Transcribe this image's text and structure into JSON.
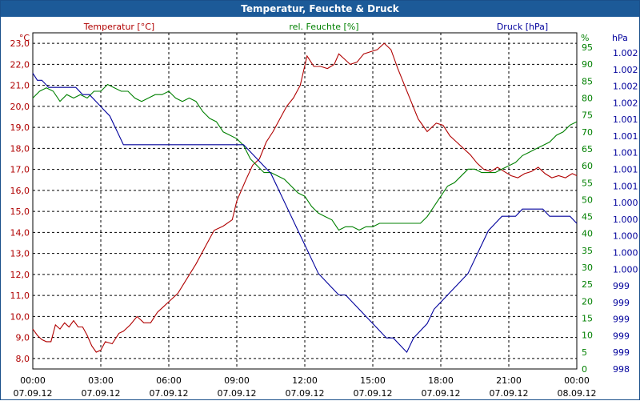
{
  "window": {
    "title": "Temperatur, Feuchte & Druck"
  },
  "colors": {
    "temperature": "#b00000",
    "humidity": "#008000",
    "pressure": "#00009c",
    "grid": "#000000",
    "title_bg": "#1c5a98"
  },
  "chart_data": {
    "type": "line",
    "title": "Temperatur, Feuchte & Druck",
    "grid": true,
    "x_ticks": [
      {
        "time": "00:00",
        "date": "07.09.12"
      },
      {
        "time": "03:00",
        "date": "07.09.12"
      },
      {
        "time": "06:00",
        "date": "07.09.12"
      },
      {
        "time": "09:00",
        "date": "07.09.12"
      },
      {
        "time": "12:00",
        "date": "07.09.12"
      },
      {
        "time": "15:00",
        "date": "07.09.12"
      },
      {
        "time": "18:00",
        "date": "07.09.12"
      },
      {
        "time": "21:00",
        "date": "07.09.12"
      },
      {
        "time": "00:00",
        "date": "08.09.12"
      }
    ],
    "axes": {
      "left": {
        "unit": "°C",
        "min": 7.5,
        "max": 23.5,
        "ticks": [
          "8,0",
          "9,0",
          "10,0",
          "11,0",
          "12,0",
          "13,0",
          "14,0",
          "15,0",
          "16,0",
          "17,0",
          "18,0",
          "19,0",
          "20,0",
          "21,0",
          "22,0",
          "23,0"
        ]
      },
      "right1": {
        "unit": "%",
        "min": 0,
        "max": 95,
        "ticks": [
          "0",
          "5",
          "10",
          "15",
          "20",
          "25",
          "30",
          "35",
          "40",
          "45",
          "50",
          "55",
          "60",
          "65",
          "70",
          "75",
          "80",
          "85",
          "90",
          "95"
        ]
      },
      "right2": {
        "unit": "hPa",
        "ticks": [
          "998",
          "999",
          "999",
          "999",
          "999",
          "999",
          "1.000",
          "1.000",
          "1.000",
          "1.000",
          "1.000",
          "1.001",
          "1.001",
          "1.001",
          "1.001",
          "1.001",
          "1.002",
          "1.002",
          "1.002",
          "1.002"
        ]
      }
    },
    "series": [
      {
        "name": "Temperatur [°C]",
        "color": "#b00000",
        "axis": "left",
        "x": [
          0,
          0.2,
          0.4,
          0.6,
          0.8,
          1.0,
          1.2,
          1.4,
          1.6,
          1.8,
          2.0,
          2.2,
          2.4,
          2.6,
          2.8,
          3.0,
          3.2,
          3.5,
          3.8,
          4.0,
          4.3,
          4.6,
          4.9,
          5.2,
          5.5,
          5.8,
          6.1,
          6.4,
          6.8,
          7.2,
          7.6,
          8.0,
          8.4,
          8.8,
          9.0,
          9.4,
          9.7,
          10.0,
          10.3,
          10.6,
          10.9,
          11.2,
          11.5,
          11.8,
          12.1,
          12.4,
          12.7,
          13.0,
          13.3,
          13.5,
          13.7,
          14.0,
          14.3,
          14.6,
          14.9,
          15.2,
          15.5,
          15.8,
          16.1,
          16.4,
          16.7,
          17.0,
          17.2,
          17.4,
          17.6,
          17.8,
          18.1,
          18.4,
          18.7,
          19.0,
          19.3,
          19.6,
          19.9,
          20.2,
          20.5,
          20.8,
          21.1,
          21.4,
          21.7,
          22.0,
          22.3,
          22.6,
          22.9,
          23.2,
          23.5,
          23.8,
          24.0
        ],
        "values": [
          9.4,
          9.1,
          8.9,
          8.8,
          8.8,
          9.6,
          9.4,
          9.7,
          9.5,
          9.8,
          9.5,
          9.5,
          9.1,
          8.6,
          8.3,
          8.4,
          8.8,
          8.7,
          9.2,
          9.3,
          9.6,
          10.0,
          9.7,
          9.7,
          10.2,
          10.5,
          10.8,
          11.1,
          11.8,
          12.5,
          13.3,
          14.1,
          14.3,
          14.6,
          15.5,
          16.5,
          17.2,
          17.5,
          18.3,
          18.8,
          19.4,
          20.0,
          20.4,
          21.0,
          22.4,
          21.9,
          21.9,
          21.8,
          22.0,
          22.5,
          22.3,
          22.0,
          22.1,
          22.5,
          22.6,
          22.7,
          23.0,
          22.7,
          21.8,
          21.0,
          20.2,
          19.4,
          19.1,
          18.8,
          19.0,
          19.2,
          19.1,
          18.6,
          18.3,
          18.0,
          17.7,
          17.3,
          17.0,
          16.9,
          17.1,
          16.9,
          16.7,
          16.6,
          16.8,
          16.9,
          17.1,
          16.8,
          16.6,
          16.7,
          16.6,
          16.8,
          16.7
        ]
      },
      {
        "name": "rel. Feuchte [%]",
        "color": "#008000",
        "axis": "right1",
        "x": [
          0,
          0.3,
          0.6,
          0.9,
          1.2,
          1.5,
          1.8,
          2.1,
          2.4,
          2.7,
          3.0,
          3.3,
          3.6,
          3.9,
          4.2,
          4.5,
          4.8,
          5.1,
          5.4,
          5.7,
          6.0,
          6.3,
          6.6,
          6.9,
          7.2,
          7.5,
          7.8,
          8.1,
          8.4,
          8.7,
          9.0,
          9.3,
          9.6,
          9.9,
          10.2,
          10.5,
          10.8,
          11.1,
          11.4,
          11.7,
          12.0,
          12.3,
          12.6,
          12.9,
          13.2,
          13.5,
          13.8,
          14.1,
          14.4,
          14.7,
          15.0,
          15.3,
          15.6,
          15.9,
          16.2,
          16.5,
          16.8,
          17.1,
          17.4,
          17.7,
          18.0,
          18.3,
          18.6,
          18.9,
          19.2,
          19.5,
          19.8,
          20.1,
          20.4,
          20.7,
          21.0,
          21.3,
          21.6,
          21.9,
          22.2,
          22.5,
          22.8,
          23.1,
          23.4,
          23.7,
          24.0
        ],
        "values": [
          80,
          82,
          83,
          82,
          79,
          81,
          80,
          81,
          80,
          82,
          82,
          84,
          83,
          82,
          82,
          80,
          79,
          80,
          81,
          81,
          82,
          80,
          79,
          80,
          79,
          76,
          74,
          73,
          70,
          69,
          68,
          66,
          62,
          60,
          58,
          58,
          57,
          56,
          54,
          52,
          51,
          48,
          46,
          45,
          44,
          41,
          42,
          42,
          41,
          42,
          42,
          43,
          43,
          43,
          43,
          43,
          43,
          43,
          45,
          48,
          51,
          54,
          55,
          57,
          59,
          59,
          58,
          58,
          58,
          59,
          60,
          61,
          63,
          64,
          65,
          66,
          67,
          69,
          70,
          72,
          73
        ]
      },
      {
        "name": "Druck [hPa]",
        "color": "#00009c",
        "axis": "right2",
        "y_scale": "pixel",
        "x": [
          0,
          0.2,
          0.4,
          0.7,
          1.0,
          1.3,
          1.6,
          1.9,
          2.2,
          2.5,
          2.8,
          3.1,
          3.4,
          3.7,
          4.0,
          4.3,
          4.6,
          4.9,
          5.2,
          5.5,
          5.8,
          6.1,
          6.4,
          6.7,
          7.0,
          7.3,
          7.6,
          7.9,
          8.2,
          8.5,
          8.8,
          9.0,
          9.3,
          9.6,
          9.9,
          10.2,
          10.5,
          10.8,
          11.1,
          11.4,
          11.7,
          12.0,
          12.3,
          12.6,
          12.9,
          13.2,
          13.5,
          13.8,
          14.1,
          14.4,
          14.7,
          15.0,
          15.3,
          15.6,
          15.9,
          16.2,
          16.5,
          16.8,
          17.1,
          17.4,
          17.7,
          18.0,
          18.3,
          18.6,
          18.9,
          19.2,
          19.5,
          19.8,
          20.1,
          20.4,
          20.7,
          21.0,
          21.3,
          21.6,
          21.9,
          22.2,
          22.5,
          22.8,
          23.1,
          23.4,
          23.7,
          24.0
        ],
        "values": [
          1.0022,
          1.0021,
          1.0021,
          1.002,
          1.002,
          1.002,
          1.002,
          1.002,
          1.0019,
          1.0019,
          1.0018,
          1.0017,
          1.0016,
          1.0014,
          1.0012,
          1.0012,
          1.0012,
          1.0012,
          1.0012,
          1.0012,
          1.0012,
          1.0012,
          1.0012,
          1.0012,
          1.0012,
          1.0012,
          1.0012,
          1.0012,
          1.0012,
          1.0012,
          1.0012,
          1.0012,
          1.0012,
          1.0011,
          1.001,
          1.0009,
          1.0008,
          1.0006,
          1.0004,
          1.0002,
          1.0,
          0.9998,
          0.9996,
          0.9994,
          0.9993,
          0.9992,
          0.9991,
          0.9991,
          0.999,
          0.9989,
          0.9988,
          0.9987,
          0.9986,
          0.9985,
          0.9985,
          0.9984,
          0.9983,
          0.9985,
          0.9986,
          0.9987,
          0.9989,
          0.999,
          0.9991,
          0.9992,
          0.9993,
          0.9994,
          0.9996,
          0.9998,
          1.0,
          1.0001,
          1.0002,
          1.0002,
          1.0002,
          1.0003,
          1.0003,
          1.0003,
          1.0003,
          1.0002,
          1.0002,
          1.0002,
          1.0002,
          1.0001
        ]
      }
    ]
  },
  "legend": {
    "temperature": "Temperatur [°C]",
    "humidity": "rel. Feuchte [%]",
    "pressure": "Druck [hPa]"
  },
  "units": {
    "left": "°C",
    "right1": "%",
    "right2": "hPa"
  }
}
